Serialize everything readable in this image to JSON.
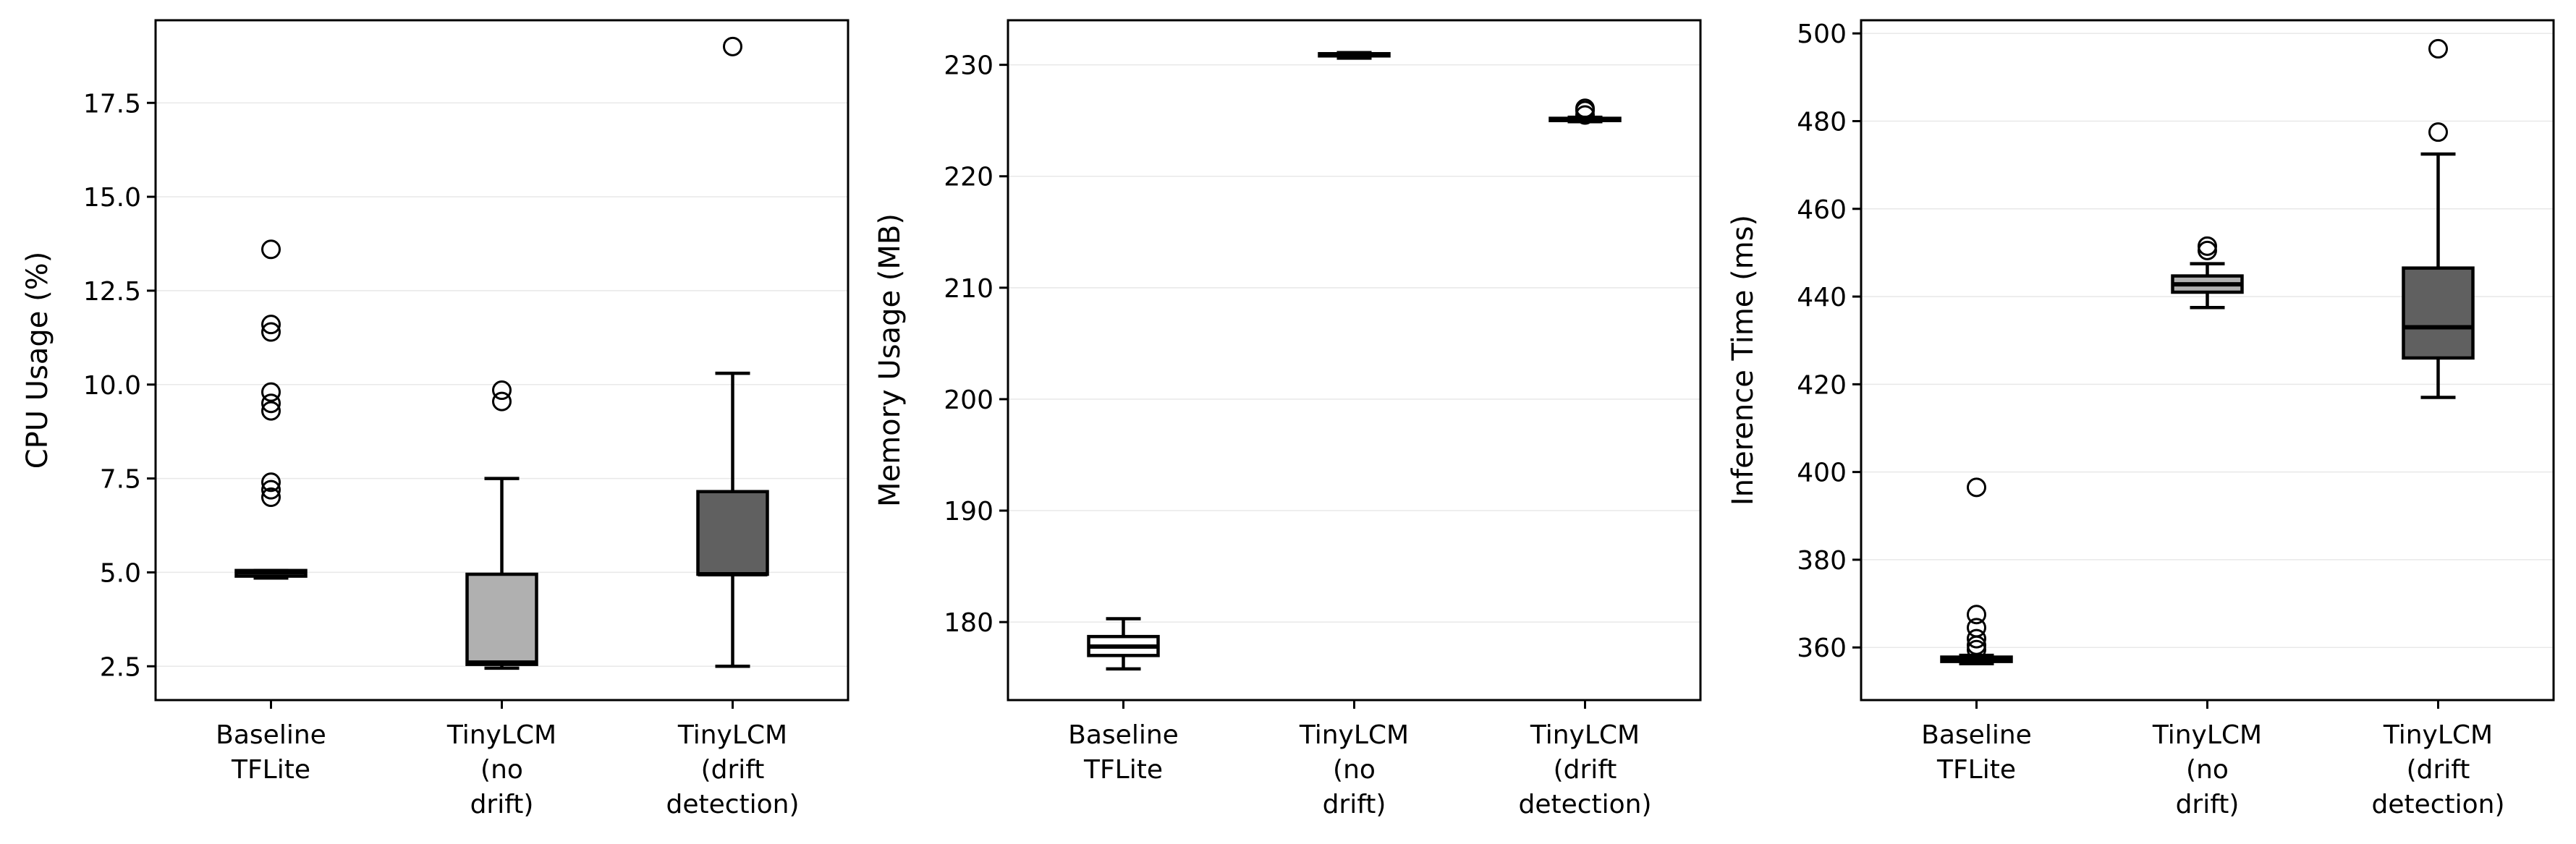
{
  "chart_data": [
    {
      "type": "box",
      "ylabel": "CPU Usage (%)",
      "ylim": [
        1.6,
        19.7
      ],
      "yticks": [
        2.5,
        5.0,
        7.5,
        10.0,
        12.5,
        15.0,
        17.5
      ],
      "ytick_labels": [
        "2.5",
        "5.0",
        "7.5",
        "10.0",
        "12.5",
        "15.0",
        "17.5"
      ],
      "grid": true,
      "categories": [
        [
          "Baseline",
          "TFLite"
        ],
        [
          "TinyLCM",
          "(no",
          "drift)"
        ],
        [
          "TinyLCM",
          "(drift",
          "detection)"
        ]
      ],
      "boxes": [
        {
          "fill": "#ffffff",
          "whisker_low": 4.85,
          "q1": 4.9,
          "median": 5.0,
          "q3": 5.05,
          "whisker_high": 5.05,
          "outliers": [
            7.0,
            7.2,
            7.4,
            9.3,
            9.5,
            9.8,
            11.4,
            11.6,
            13.6
          ]
        },
        {
          "fill": "#b0b0b0",
          "whisker_low": 2.45,
          "q1": 2.55,
          "median": 2.6,
          "q3": 4.95,
          "whisker_high": 7.5,
          "outliers": [
            9.55,
            9.85
          ]
        },
        {
          "fill": "#606060",
          "whisker_low": 2.5,
          "q1": 4.95,
          "median": 4.95,
          "q3": 7.15,
          "whisker_high": 10.3,
          "outliers": [
            19.0
          ]
        }
      ]
    },
    {
      "type": "box",
      "ylabel": "Memory Usage (MB)",
      "ylim": [
        173,
        234
      ],
      "yticks": [
        180,
        190,
        200,
        210,
        220,
        230
      ],
      "ytick_labels": [
        "180",
        "190",
        "200",
        "210",
        "220",
        "230"
      ],
      "grid": true,
      "categories": [
        [
          "Baseline",
          "TFLite"
        ],
        [
          "TinyLCM",
          "(no",
          "drift)"
        ],
        [
          "TinyLCM",
          "(drift",
          "detection)"
        ]
      ],
      "boxes": [
        {
          "fill": "#ffffff",
          "whisker_low": 175.8,
          "q1": 177.0,
          "median": 177.8,
          "q3": 178.7,
          "whisker_high": 180.3,
          "outliers": []
        },
        {
          "fill": "#b0b0b0",
          "whisker_low": 230.6,
          "q1": 230.8,
          "median": 230.9,
          "q3": 231.0,
          "whisker_high": 231.1,
          "outliers": []
        },
        {
          "fill": "#606060",
          "whisker_low": 224.9,
          "q1": 225.0,
          "median": 225.1,
          "q3": 225.2,
          "whisker_high": 225.3,
          "outliers": [
            225.5,
            225.9,
            226.1
          ]
        }
      ]
    },
    {
      "type": "box",
      "ylabel": "Inference Time (ms)",
      "ylim": [
        348,
        503
      ],
      "yticks": [
        360,
        380,
        400,
        420,
        440,
        460,
        480,
        500
      ],
      "ytick_labels": [
        "360",
        "380",
        "400",
        "420",
        "440",
        "460",
        "480",
        "500"
      ],
      "grid": true,
      "categories": [
        [
          "Baseline",
          "TFLite"
        ],
        [
          "TinyLCM",
          "(no",
          "drift)"
        ],
        [
          "TinyLCM",
          "(drift",
          "detection)"
        ]
      ],
      "boxes": [
        {
          "fill": "#ffffff",
          "whisker_low": 356.3,
          "q1": 356.8,
          "median": 357.2,
          "q3": 357.8,
          "whisker_high": 358.2,
          "outliers": [
            359.5,
            360.5,
            362.0,
            364.5,
            367.5,
            396.5
          ]
        },
        {
          "fill": "#b0b0b0",
          "whisker_low": 437.5,
          "q1": 441.0,
          "median": 442.8,
          "q3": 444.7,
          "whisker_high": 447.5,
          "outliers": [
            450.5,
            451.5
          ]
        },
        {
          "fill": "#606060",
          "whisker_low": 417.0,
          "q1": 426.0,
          "median": 433.0,
          "q3": 446.5,
          "whisker_high": 472.5,
          "outliers": [
            477.5,
            496.5
          ]
        }
      ]
    }
  ]
}
